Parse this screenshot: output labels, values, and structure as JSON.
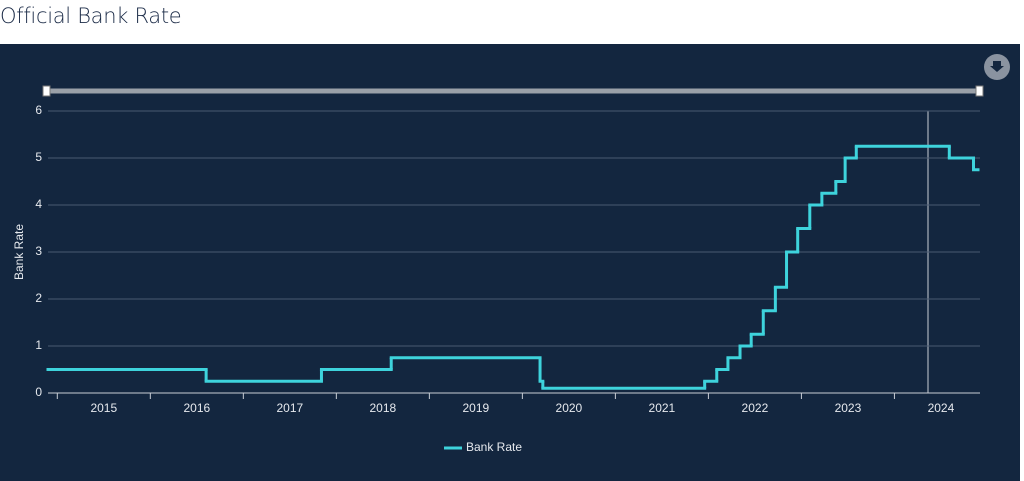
{
  "page_title": "Official Bank Rate",
  "chart_data": {
    "type": "step-line",
    "y_label": "Bank Rate",
    "series": [
      {
        "name": "Bank Rate",
        "color": "#3ed3dc",
        "x": [
          2014.9,
          2016.6,
          2017.84,
          2018.59,
          2020.19,
          2020.22,
          2021.96,
          2022.09,
          2022.21,
          2022.34,
          2022.46,
          2022.59,
          2022.72,
          2022.84,
          2022.96,
          2023.09,
          2023.22,
          2023.37,
          2023.47,
          2023.59,
          2024.59,
          2024.85
        ],
        "values": [
          0.5,
          0.25,
          0.5,
          0.75,
          0.25,
          0.1,
          0.25,
          0.5,
          0.75,
          1,
          1.25,
          1.75,
          2.25,
          3,
          3.5,
          4,
          4.25,
          4.5,
          5,
          5.25,
          5,
          4.75
        ]
      }
    ],
    "xlim": [
      2014.9,
      2024.92
    ],
    "xticks": [
      2015,
      2016,
      2017,
      2018,
      2019,
      2020,
      2021,
      2022,
      2023,
      2024
    ],
    "ylim": [
      0,
      6
    ],
    "yticks": [
      0,
      1,
      2,
      3,
      4,
      5,
      6
    ],
    "grid": true,
    "legend": "bottom"
  }
}
